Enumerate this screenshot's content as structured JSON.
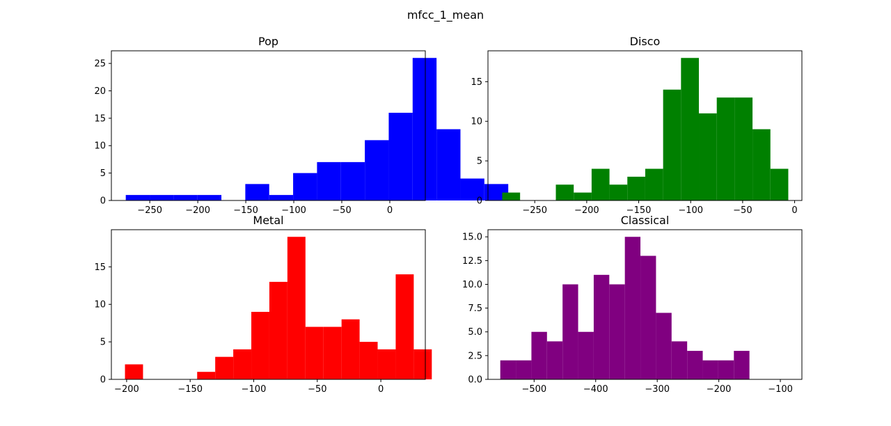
{
  "suptitle": "mfcc_1_mean",
  "chart_data": [
    {
      "type": "bar",
      "subtype": "histogram",
      "title": "Pop",
      "color": "#0000ff",
      "bin_start": -275,
      "bin_width": 24.9,
      "counts": [
        1,
        1,
        1,
        1,
        0,
        3,
        1,
        5,
        7,
        7,
        11,
        16,
        26,
        13,
        4,
        3
      ],
      "xlim": [
        -290,
        37
      ],
      "ylim": [
        0,
        27.3
      ],
      "xticks": [
        -250,
        -200,
        -150,
        -100,
        -50,
        0
      ],
      "xtick_labels": [
        "−250",
        "−200",
        "−150",
        "−100",
        "−50",
        "0"
      ],
      "yticks": [
        0,
        5,
        10,
        15,
        20,
        25
      ],
      "ytick_labels": [
        "0",
        "5",
        "10",
        "15",
        "20",
        "25"
      ],
      "grid": false
    },
    {
      "type": "bar",
      "subtype": "histogram",
      "title": "Disco",
      "color": "#008000",
      "bin_start": -281.3,
      "bin_width": 17.2,
      "counts": [
        1,
        0,
        0,
        2,
        1,
        4,
        2,
        3,
        4,
        14,
        18,
        11,
        13,
        13,
        9,
        4
      ],
      "xlim": [
        -295,
        7
      ],
      "ylim": [
        0,
        18.9
      ],
      "xticks": [
        -250,
        -200,
        -150,
        -100,
        -50,
        0
      ],
      "xtick_labels": [
        "−250",
        "−200",
        "−150",
        "−100",
        "−50",
        "0"
      ],
      "yticks": [
        0,
        5,
        10,
        15
      ],
      "ytick_labels": [
        "0",
        "5",
        "10",
        "15"
      ],
      "grid": false
    },
    {
      "type": "bar",
      "subtype": "histogram",
      "title": "Metal",
      "color": "#ff0000",
      "bin_start": -201.3,
      "bin_width": 14.2,
      "counts": [
        2,
        0,
        0,
        0,
        1,
        3,
        4,
        9,
        13,
        19,
        7,
        7,
        8,
        5,
        4,
        14,
        4
      ],
      "xlim": [
        -212,
        35
      ],
      "ylim": [
        0,
        19.95
      ],
      "xticks": [
        -200,
        -150,
        -100,
        -50,
        0
      ],
      "xtick_labels": [
        "−200",
        "−150",
        "−100",
        "−50",
        "0"
      ],
      "yticks": [
        0,
        5,
        10,
        15
      ],
      "ytick_labels": [
        "0",
        "5",
        "10",
        "15"
      ],
      "grid": false
    },
    {
      "type": "bar",
      "subtype": "histogram",
      "title": "Classical",
      "color": "#800080",
      "bin_start": -555,
      "bin_width": 25.3,
      "counts": [
        2,
        2,
        5,
        4,
        10,
        5,
        11,
        10,
        15,
        13,
        7,
        4,
        3,
        2,
        2,
        3,
        0,
        0,
        0
      ],
      "xlim": [
        -575,
        -65
      ],
      "ylim": [
        0,
        15.75
      ],
      "xticks": [
        -500,
        -400,
        -300,
        -200,
        -100
      ],
      "xtick_labels": [
        "−500",
        "−400",
        "−300",
        "−200",
        "−100"
      ],
      "yticks": [
        0,
        2.5,
        5,
        7.5,
        10,
        12.5,
        15
      ],
      "ytick_labels": [
        "0.0",
        "2.5",
        "5.0",
        "7.5",
        "10.0",
        "12.5",
        "15.0"
      ],
      "grid": false
    }
  ]
}
